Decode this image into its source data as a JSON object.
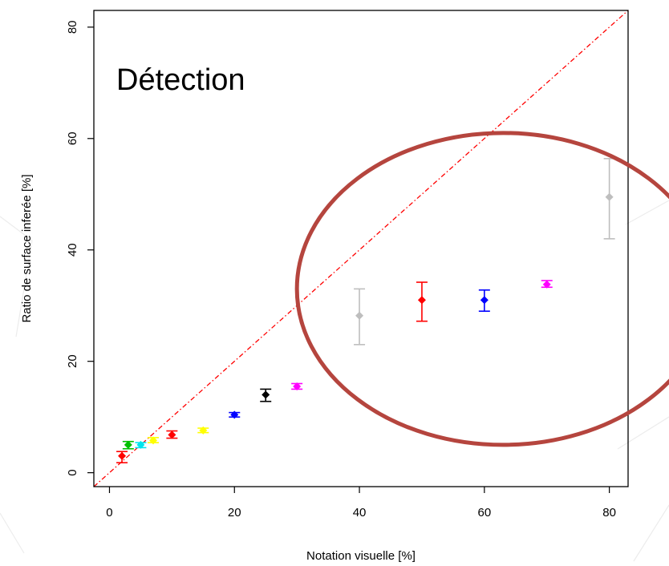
{
  "chart_data": {
    "type": "scatter",
    "title": "",
    "annotation": "Détection",
    "xlabel": "Notation visuelle [%]",
    "ylabel": "Ratio de surface inferée [%]",
    "xlim": [
      -2.5,
      83
    ],
    "ylim": [
      -2.5,
      83
    ],
    "xticks": [
      0,
      20,
      40,
      60,
      80
    ],
    "yticks": [
      0,
      20,
      40,
      60,
      80
    ],
    "grid": false,
    "reference_line": {
      "slope": 1,
      "intercept": 0,
      "color": "#ff0000",
      "style": "dashed"
    },
    "points": [
      {
        "x": 2,
        "y": 3.0,
        "err_low": 1.8,
        "err_high": 3.8,
        "color": "#ff0000"
      },
      {
        "x": 3,
        "y": 5.0,
        "err_low": 4.3,
        "err_high": 5.6,
        "color": "#00c000"
      },
      {
        "x": 5,
        "y": 5.0,
        "err_low": 4.5,
        "err_high": 5.4,
        "color": "#00e5ee"
      },
      {
        "x": 7,
        "y": 5.8,
        "err_low": 5.4,
        "err_high": 6.3,
        "color": "#ffff00"
      },
      {
        "x": 10,
        "y": 6.8,
        "err_low": 6.2,
        "err_high": 7.5,
        "color": "#ff0000"
      },
      {
        "x": 15,
        "y": 7.6,
        "err_low": 7.2,
        "err_high": 8.0,
        "color": "#ffff00"
      },
      {
        "x": 20,
        "y": 10.4,
        "err_low": 10.0,
        "err_high": 10.8,
        "color": "#0000ff"
      },
      {
        "x": 25,
        "y": 14.0,
        "err_low": 12.8,
        "err_high": 15.0,
        "color": "#000000"
      },
      {
        "x": 30,
        "y": 15.5,
        "err_low": 15.0,
        "err_high": 16.0,
        "color": "#ff00ff"
      },
      {
        "x": 40,
        "y": 28.2,
        "err_low": 23.0,
        "err_high": 33.0,
        "color": "#bebebe"
      },
      {
        "x": 50,
        "y": 31.0,
        "err_low": 27.2,
        "err_high": 34.2,
        "color": "#ff0000"
      },
      {
        "x": 60,
        "y": 31.0,
        "err_low": 29.0,
        "err_high": 32.8,
        "color": "#0000ff"
      },
      {
        "x": 70,
        "y": 33.8,
        "err_low": 33.3,
        "err_high": 34.5,
        "color": "#ff00ff"
      },
      {
        "x": 80,
        "y": 49.5,
        "err_low": 42.0,
        "err_high": 56.4,
        "color": "#bebebe"
      }
    ],
    "highlight_ellipse": {
      "cx": 63,
      "cy": 33,
      "rx": 33,
      "ry": 28,
      "color": "#b5453e"
    }
  }
}
